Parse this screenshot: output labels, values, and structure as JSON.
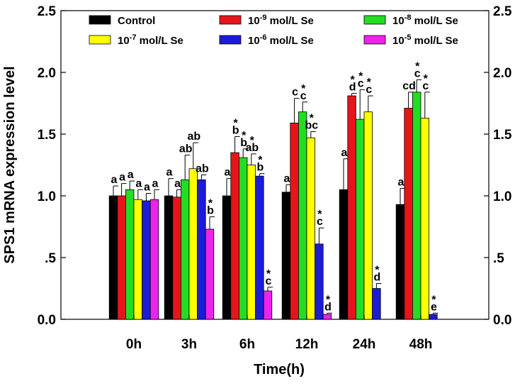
{
  "chart_data": {
    "type": "bar",
    "xlabel": "Time(h)",
    "ylabel": "SPS1 mRNA expression level",
    "ylim": [
      0,
      2.5
    ],
    "yticks": [
      0.0,
      0.5,
      1.0,
      1.5,
      2.0,
      2.5
    ],
    "ytick_labels": [
      "0.0",
      ".5",
      "1.0",
      "1.5",
      "2.0",
      "2.5"
    ],
    "categories": [
      "0h",
      "3h",
      "6h",
      "12h",
      "24h",
      "48h"
    ],
    "legend_placement": "top",
    "series": [
      {
        "name": "Control",
        "color": "#000000",
        "values": [
          1.0,
          1.0,
          1.0,
          1.03,
          1.05,
          0.93
        ],
        "errors": [
          0.08,
          0.14,
          0.14,
          0.06,
          0.25,
          0.13
        ],
        "letters": [
          "a",
          "a",
          "a",
          "a",
          "a",
          "a"
        ],
        "stars": [
          false,
          false,
          false,
          false,
          false,
          false
        ]
      },
      {
        "name": "10-9 mol/L Se",
        "base": "10",
        "exponent": "-9",
        "suffix": " mol/L Se",
        "color": "#e8141b",
        "values": [
          1.0,
          0.99,
          1.35,
          1.59,
          1.81,
          1.71
        ],
        "errors": [
          0.1,
          0.06,
          0.13,
          0.2,
          0.02,
          0.13
        ],
        "letters": [
          "a",
          "a",
          "b",
          "c",
          "d",
          "cd"
        ],
        "stars": [
          false,
          false,
          true,
          false,
          true,
          false
        ]
      },
      {
        "name": "10-8 mol/L Se",
        "base": "10",
        "exponent": "-8",
        "suffix": " mol/L Se",
        "color": "#22dd22",
        "values": [
          1.05,
          1.13,
          1.31,
          1.68,
          1.62,
          1.84
        ],
        "errors": [
          0.07,
          0.2,
          0.07,
          0.08,
          0.24,
          0.1
        ],
        "letters": [
          "a",
          "ab",
          "b",
          "c",
          "c",
          "c"
        ],
        "stars": [
          false,
          false,
          true,
          true,
          true,
          true
        ]
      },
      {
        "name": "10-7 mol/L Se",
        "base": "10",
        "exponent": "-7",
        "suffix": " mol/L Se",
        "color": "#ffff00",
        "values": [
          0.97,
          1.22,
          1.25,
          1.47,
          1.68,
          1.63
        ],
        "errors": [
          0.08,
          0.21,
          0.09,
          0.05,
          0.13,
          0.21
        ],
        "letters": [
          "a",
          "ab",
          "ab",
          "bc",
          "c",
          "c"
        ],
        "stars": [
          false,
          false,
          true,
          true,
          true,
          true
        ]
      },
      {
        "name": "10-6 mol/L Se",
        "base": "10",
        "exponent": "-6",
        "suffix": " mol/L Se",
        "color": "#1c1cd8",
        "values": [
          0.96,
          1.13,
          1.16,
          0.61,
          0.25,
          0.04
        ],
        "errors": [
          0.06,
          0.04,
          0.02,
          0.13,
          0.04,
          0.01
        ],
        "letters": [
          "a",
          "ab",
          "b",
          "c",
          "d",
          "e"
        ],
        "stars": [
          false,
          false,
          true,
          true,
          true,
          true
        ]
      },
      {
        "name": "10-5 mol/L Se",
        "base": "10",
        "exponent": "-5",
        "suffix": " mol/L Se",
        "color": "#ee22ee",
        "values": [
          0.97,
          0.73,
          0.23,
          0.04,
          null,
          null
        ],
        "errors": [
          0.08,
          0.1,
          0.03,
          0.01,
          null,
          null
        ],
        "letters": [
          "a",
          "b",
          "c",
          "d",
          null,
          null
        ],
        "stars": [
          false,
          true,
          true,
          true,
          false,
          false
        ]
      }
    ]
  }
}
